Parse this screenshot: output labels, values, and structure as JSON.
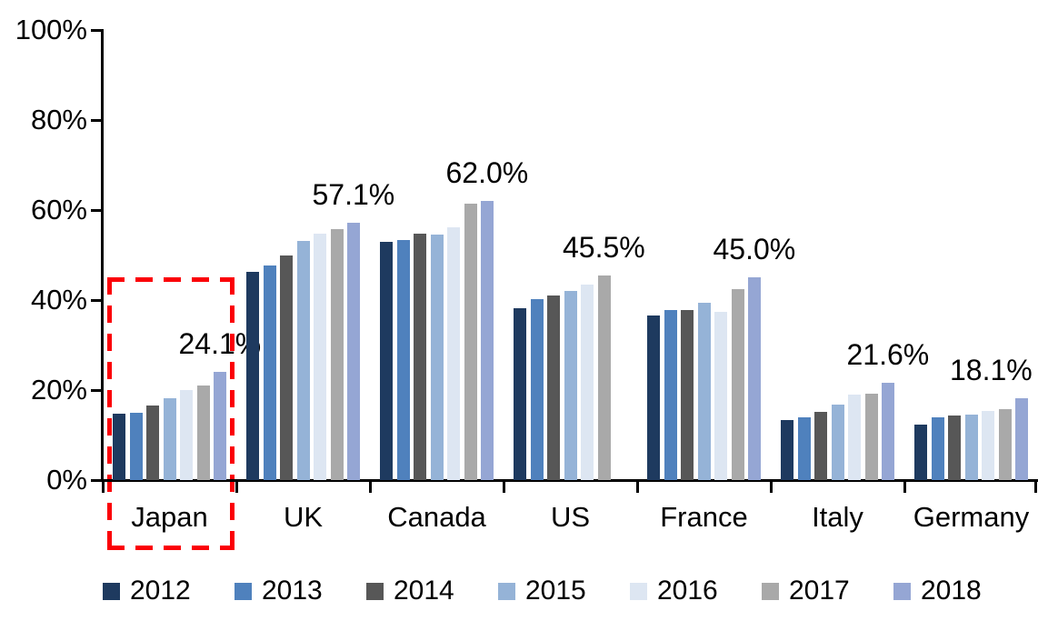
{
  "chart_data": {
    "type": "bar",
    "title": "",
    "categories": [
      "Japan",
      "UK",
      "Canada",
      "US",
      "France",
      "Italy",
      "Germany"
    ],
    "series": [
      {
        "name": "2012",
        "color": "#1E3A5F",
        "values": [
          14.8,
          46.3,
          53.0,
          38.2,
          36.6,
          13.3,
          12.4
        ]
      },
      {
        "name": "2013",
        "color": "#4F81BD",
        "values": [
          14.9,
          47.7,
          53.3,
          40.2,
          37.8,
          13.9,
          13.9
        ]
      },
      {
        "name": "2014",
        "color": "#575757",
        "values": [
          16.5,
          49.9,
          54.8,
          41.0,
          37.7,
          15.2,
          14.4
        ]
      },
      {
        "name": "2015",
        "color": "#95B3D7",
        "values": [
          18.1,
          53.2,
          54.6,
          42.0,
          39.4,
          16.8,
          14.6
        ]
      },
      {
        "name": "2016",
        "color": "#DDE6F2",
        "values": [
          20.0,
          54.8,
          56.1,
          43.5,
          37.4,
          19.0,
          15.4
        ]
      },
      {
        "name": "2017",
        "color": "#A9A9A9",
        "values": [
          21.1,
          55.8,
          61.5,
          45.5,
          42.4,
          19.2,
          15.8
        ]
      },
      {
        "name": "2018",
        "color": "#95A6D4",
        "values": [
          24.1,
          57.1,
          62.0,
          null,
          45.0,
          21.6,
          18.1
        ]
      }
    ],
    "data_labels": [
      "24.1%",
      "57.1%",
      "62.0%",
      "45.5%",
      "45.0%",
      "21.6%",
      "18.1%"
    ],
    "y_ticks": [
      "0%",
      "20%",
      "40%",
      "60%",
      "80%",
      "100%"
    ],
    "y_tick_values": [
      0,
      20,
      40,
      60,
      80,
      100
    ],
    "ylim": [
      0,
      100
    ],
    "grid": false,
    "legend_position": "bottom",
    "annotation": {
      "type": "dashed-box",
      "color": "#FB0007",
      "target": "Japan",
      "note": "red dashed rectangle highlighting the Japan group"
    }
  }
}
